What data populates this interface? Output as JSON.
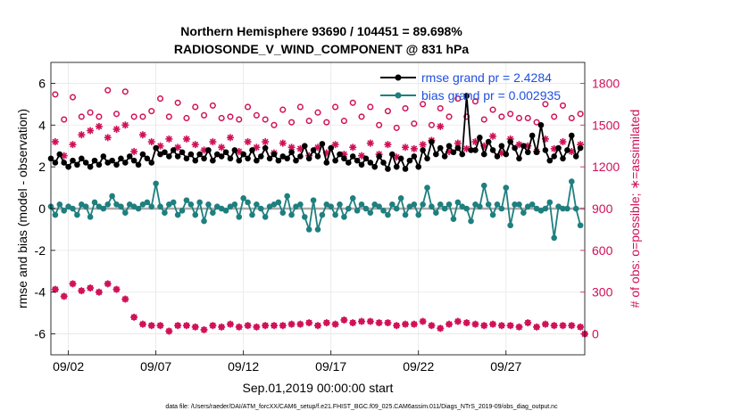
{
  "chart_data": {
    "type": "line",
    "title": "Northern Hemisphere 93690 / 104451 = 89.698%",
    "subtitle": "RADIOSONDE_V_WIND_COMPONENT @ 831 hPa",
    "xlabel": "Sep.01,2019 00:00:00 start",
    "ylabel": "rmse and bias (model - observation)",
    "y2label": "# of obs: o=possible; ∗=assimilated",
    "footnote": "data file: /Users/raeder/DAI/ATM_forcXX/CAM6_setup/f.e21.FHIST_BGC.f09_025.CAM6assim.011/Diags_NTrS_2019-09/obs_diag_output.nc",
    "xlim": [
      1.0,
      31.5
    ],
    "ylim": [
      -7,
      7
    ],
    "y2lim": [
      -150,
      1950
    ],
    "x_tick_values": [
      2,
      7,
      12,
      17,
      22,
      27
    ],
    "x_tick_labels": [
      "09/02",
      "09/07",
      "09/12",
      "09/17",
      "09/22",
      "09/27"
    ],
    "y_ticks": [
      -6,
      -4,
      -2,
      0,
      2,
      4,
      6
    ],
    "y2_ticks": [
      0,
      300,
      600,
      900,
      1200,
      1500,
      1800
    ],
    "grid": true,
    "colors": {
      "rmse": "#000000",
      "bias": "#1f7f7f",
      "obs": "#d01057",
      "zero_line": "#aaaaaa",
      "legend_text": "#1f4fe0",
      "grid": "#e6e6e6"
    },
    "series": [
      {
        "name": "rmse grand pr = 2.4284",
        "axis": "left",
        "x": [
          1.0,
          1.25,
          1.5,
          1.75,
          2.0,
          2.25,
          2.5,
          2.75,
          3.0,
          3.25,
          3.5,
          3.75,
          4.0,
          4.25,
          4.5,
          4.75,
          5.0,
          5.25,
          5.5,
          5.75,
          6.0,
          6.25,
          6.5,
          6.75,
          7.0,
          7.25,
          7.5,
          7.75,
          8.0,
          8.25,
          8.5,
          8.75,
          9.0,
          9.25,
          9.5,
          9.75,
          10.0,
          10.25,
          10.5,
          10.75,
          11.0,
          11.25,
          11.5,
          11.75,
          12.0,
          12.25,
          12.5,
          12.75,
          13.0,
          13.25,
          13.5,
          13.75,
          14.0,
          14.25,
          14.5,
          14.75,
          15.0,
          15.25,
          15.5,
          15.75,
          16.0,
          16.25,
          16.5,
          16.75,
          17.0,
          17.25,
          17.5,
          17.75,
          18.0,
          18.25,
          18.5,
          18.75,
          19.0,
          19.25,
          19.5,
          19.75,
          20.0,
          20.25,
          20.5,
          20.75,
          21.0,
          21.25,
          21.5,
          21.75,
          22.0,
          22.25,
          22.5,
          22.75,
          23.0,
          23.25,
          23.5,
          23.75,
          24.0,
          24.25,
          24.5,
          24.75,
          25.0,
          25.25,
          25.5,
          25.75,
          26.0,
          26.25,
          26.5,
          26.75,
          27.0,
          27.25,
          27.5,
          27.75,
          28.0,
          28.25,
          28.5,
          28.75,
          29.0,
          29.25,
          29.5,
          29.75,
          30.0,
          30.25,
          30.5,
          30.75,
          31.0,
          31.25
        ],
        "values": [
          2.4,
          2.2,
          2.6,
          2.2,
          2.0,
          2.3,
          2.1,
          2.4,
          2.2,
          2.0,
          2.3,
          2.1,
          2.5,
          2.2,
          2.3,
          2.1,
          2.4,
          2.2,
          2.5,
          2.3,
          2.1,
          2.6,
          2.4,
          2.2,
          2.9,
          2.6,
          2.7,
          2.5,
          2.8,
          2.5,
          2.7,
          2.4,
          2.6,
          2.3,
          2.6,
          2.4,
          2.8,
          2.3,
          2.6,
          2.5,
          2.7,
          2.4,
          2.8,
          2.3,
          2.6,
          2.4,
          2.8,
          2.3,
          2.5,
          2.9,
          2.4,
          2.6,
          2.3,
          2.5,
          2.4,
          2.7,
          2.3,
          2.5,
          3.0,
          2.4,
          2.8,
          2.5,
          3.1,
          2.2,
          2.9,
          2.3,
          2.6,
          2.4,
          2.2,
          2.5,
          2.3,
          2.1,
          2.4,
          2.2,
          2.0,
          2.5,
          2.2,
          1.9,
          2.6,
          2.0,
          2.4,
          1.9,
          2.3,
          2.5,
          2.0,
          2.8,
          2.4,
          3.2,
          2.6,
          2.9,
          2.5,
          3.0,
          2.7,
          2.9,
          2.6,
          5.4,
          2.8,
          2.8,
          3.4,
          2.6,
          3.2,
          2.8,
          2.5,
          3.0,
          2.6,
          3.2,
          2.9,
          2.4,
          3.0,
          2.7,
          3.5,
          2.7,
          4.0,
          2.8,
          2.3,
          2.5,
          2.9,
          2.4,
          2.8,
          3.5,
          2.5,
          2.9
        ],
        "marker": "filled-circle"
      },
      {
        "name": "bias grand pr = 0.002935",
        "axis": "left",
        "x": [
          1.0,
          1.25,
          1.5,
          1.75,
          2.0,
          2.25,
          2.5,
          2.75,
          3.0,
          3.25,
          3.5,
          3.75,
          4.0,
          4.25,
          4.5,
          4.75,
          5.0,
          5.25,
          5.5,
          5.75,
          6.0,
          6.25,
          6.5,
          6.75,
          7.0,
          7.25,
          7.5,
          7.75,
          8.0,
          8.25,
          8.5,
          8.75,
          9.0,
          9.25,
          9.5,
          9.75,
          10.0,
          10.25,
          10.5,
          10.75,
          11.0,
          11.25,
          11.5,
          11.75,
          12.0,
          12.25,
          12.5,
          12.75,
          13.0,
          13.25,
          13.5,
          13.75,
          14.0,
          14.25,
          14.5,
          14.75,
          15.0,
          15.25,
          15.5,
          15.75,
          16.0,
          16.25,
          16.5,
          16.75,
          17.0,
          17.25,
          17.5,
          17.75,
          18.0,
          18.25,
          18.5,
          18.75,
          19.0,
          19.25,
          19.5,
          19.75,
          20.0,
          20.25,
          20.5,
          20.75,
          21.0,
          21.25,
          21.5,
          21.75,
          22.0,
          22.25,
          22.5,
          22.75,
          23.0,
          23.25,
          23.5,
          23.75,
          24.0,
          24.25,
          24.5,
          24.75,
          25.0,
          25.25,
          25.5,
          25.75,
          26.0,
          26.25,
          26.5,
          26.75,
          27.0,
          27.25,
          27.5,
          27.75,
          28.0,
          28.25,
          28.5,
          28.75,
          29.0,
          29.25,
          29.5,
          29.75,
          30.0,
          30.25,
          30.5,
          30.75,
          31.0,
          31.25
        ],
        "values": [
          0.1,
          -0.3,
          0.2,
          -0.1,
          0.1,
          0.0,
          -0.3,
          0.2,
          0.1,
          -0.4,
          0.3,
          0.1,
          0.0,
          0.2,
          0.6,
          0.2,
          0.1,
          -0.2,
          0.2,
          0.1,
          0.0,
          0.2,
          0.3,
          0.1,
          1.2,
          0.1,
          -0.2,
          0.2,
          0.3,
          -0.3,
          -0.1,
          0.4,
          0.2,
          -0.3,
          0.3,
          -0.6,
          0.2,
          -0.2,
          0.1,
          0.0,
          -0.1,
          0.1,
          0.2,
          -0.4,
          0.5,
          0.3,
          -0.3,
          0.2,
          0.0,
          -0.4,
          0.1,
          0.2,
          0.3,
          -0.2,
          0.6,
          -0.3,
          0.1,
          0.2,
          -0.4,
          -1.0,
          0.4,
          -1.0,
          -0.3,
          0.2,
          0.1,
          -0.3,
          0.2,
          -0.4,
          0.0,
          0.5,
          -0.1,
          0.2,
          0.0,
          -0.2,
          0.2,
          0.1,
          -0.1,
          -0.3,
          0.2,
          0.0,
          0.5,
          -0.3,
          0.1,
          0.2,
          -0.3,
          0.2,
          1.0,
          0.1,
          -0.2,
          0.2,
          0.0,
          0.2,
          -0.5,
          0.3,
          0.1,
          0.0,
          -0.6,
          0.2,
          0.1,
          1.1,
          0.2,
          -0.3,
          0.2,
          0.0,
          1.0,
          -0.8,
          0.2,
          0.2,
          -0.2,
          0.1,
          0.2,
          0.0,
          -0.1,
          0.0,
          0.3,
          -1.4,
          0.1,
          0.0,
          0.0,
          1.3,
          0.0,
          -0.8
        ],
        "marker": "filled-circle"
      },
      {
        "name": "obs possible",
        "axis": "right",
        "x": [
          1.25,
          1.75,
          2.25,
          2.75,
          3.25,
          3.75,
          4.25,
          4.75,
          5.25,
          5.75,
          6.25,
          6.75,
          7.25,
          7.75,
          8.25,
          8.75,
          9.25,
          9.75,
          10.25,
          10.75,
          11.25,
          11.75,
          12.25,
          12.75,
          13.25,
          13.75,
          14.25,
          14.75,
          15.25,
          15.75,
          16.25,
          16.75,
          17.25,
          17.75,
          18.25,
          18.75,
          19.25,
          19.75,
          20.25,
          20.75,
          21.25,
          21.75,
          22.25,
          22.75,
          23.25,
          23.75,
          24.25,
          24.75,
          25.25,
          25.75,
          26.25,
          26.75,
          27.25,
          27.75,
          28.25,
          28.75,
          29.25,
          29.75,
          30.25,
          30.75,
          31.25
        ],
        "values": [
          1720,
          1540,
          1700,
          1560,
          1590,
          1560,
          1750,
          1580,
          1740,
          1560,
          1560,
          1600,
          1690,
          1560,
          1660,
          1550,
          1630,
          1570,
          1640,
          1550,
          1560,
          1540,
          1630,
          1570,
          1540,
          1500,
          1610,
          1520,
          1630,
          1530,
          1590,
          1520,
          1630,
          1530,
          1660,
          1560,
          1630,
          1500,
          1600,
          1480,
          1620,
          1510,
          1650,
          1500,
          1620,
          1560,
          1690,
          1560,
          1670,
          1540,
          1610,
          1560,
          1580,
          1550,
          1550,
          1520,
          1650,
          1560,
          1640,
          1550,
          1580
        ],
        "marker": "open-circle"
      },
      {
        "name": "obs assimilated",
        "axis": "right",
        "x": [
          1.25,
          1.75,
          2.25,
          2.75,
          3.25,
          3.75,
          4.25,
          4.75,
          5.25,
          5.75,
          6.25,
          6.75,
          7.25,
          7.75,
          8.25,
          8.75,
          9.25,
          9.75,
          10.25,
          10.75,
          11.25,
          11.75,
          12.25,
          12.75,
          13.25,
          13.75,
          14.25,
          14.75,
          15.25,
          15.75,
          16.25,
          16.75,
          17.25,
          17.75,
          18.25,
          18.75,
          19.25,
          19.75,
          20.25,
          20.75,
          21.25,
          21.75,
          22.25,
          22.75,
          23.25,
          23.75,
          24.25,
          24.75,
          25.25,
          25.75,
          26.25,
          26.75,
          27.25,
          27.75,
          28.25,
          28.75,
          29.25,
          29.75,
          30.25,
          30.75,
          31.25
        ],
        "values": [
          1380,
          1280,
          1360,
          1430,
          1460,
          1490,
          1410,
          1470,
          1500,
          1310,
          1430,
          1380,
          1350,
          1400,
          1340,
          1400,
          1360,
          1320,
          1380,
          1340,
          1410,
          1310,
          1380,
          1340,
          1380,
          1300,
          1370,
          1340,
          1330,
          1280,
          1340,
          1300,
          1360,
          1290,
          1340,
          1280,
          1370,
          1290,
          1360,
          1270,
          1340,
          1330,
          1360,
          1390,
          1490,
          1310,
          1370,
          1330,
          1380,
          1350,
          1420,
          1300,
          1400,
          1360,
          1350,
          1310,
          1400,
          1330,
          1380,
          1310,
          1360
        ],
        "marker": "asterisk"
      },
      {
        "name": "obs assimilated (lower set)",
        "axis": "right",
        "x": [
          1.25,
          1.75,
          2.25,
          2.75,
          3.25,
          3.75,
          4.25,
          4.75,
          5.25,
          5.75,
          6.25,
          6.75,
          7.25,
          7.75,
          8.25,
          8.75,
          9.25,
          9.75,
          10.25,
          10.75,
          11.25,
          11.75,
          12.25,
          12.75,
          13.25,
          13.75,
          14.25,
          14.75,
          15.25,
          15.75,
          16.25,
          16.75,
          17.25,
          17.75,
          18.25,
          18.75,
          19.25,
          19.75,
          20.25,
          20.75,
          21.25,
          21.75,
          22.25,
          22.75,
          23.25,
          23.75,
          24.25,
          24.75,
          25.25,
          25.75,
          26.25,
          26.75,
          27.25,
          27.75,
          28.25,
          28.75,
          29.25,
          29.75,
          30.25,
          30.75,
          31.25
        ],
        "values": [
          320,
          270,
          360,
          310,
          330,
          300,
          360,
          320,
          250,
          120,
          70,
          60,
          60,
          20,
          60,
          60,
          50,
          30,
          60,
          50,
          70,
          50,
          60,
          50,
          60,
          60,
          60,
          70,
          70,
          80,
          60,
          80,
          70,
          100,
          80,
          90,
          90,
          80,
          80,
          60,
          70,
          70,
          90,
          60,
          40,
          70,
          90,
          80,
          70,
          60,
          70,
          60,
          60,
          50,
          80,
          50,
          70,
          60,
          60,
          60,
          50
        ],
        "marker": "asterisk"
      }
    ],
    "extra_point": {
      "x": 31.5,
      "value": -6.0,
      "axis": "left"
    }
  }
}
